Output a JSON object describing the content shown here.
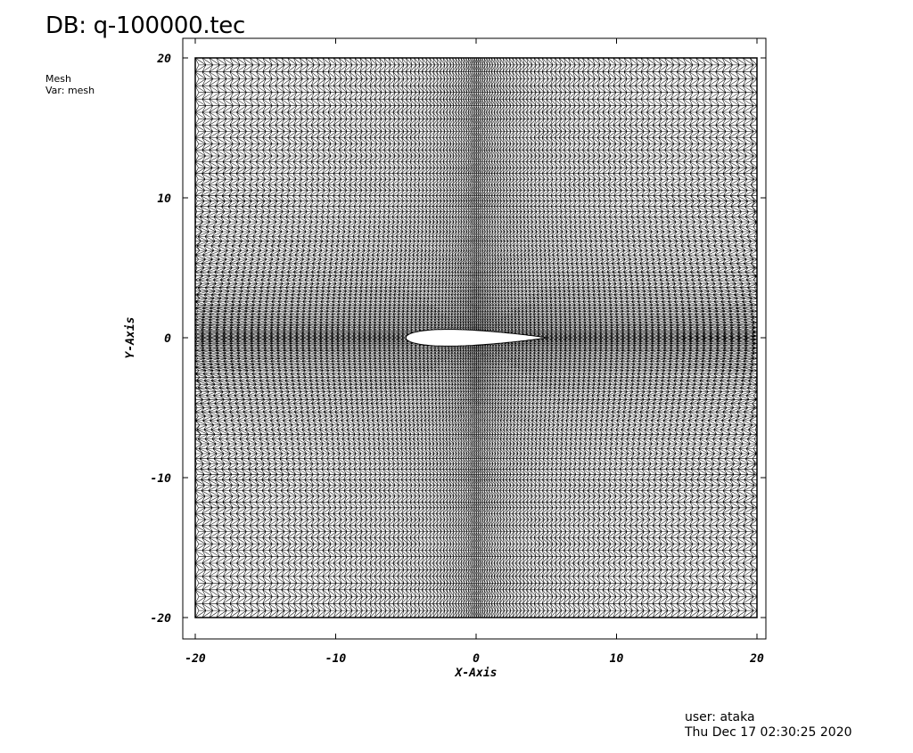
{
  "header": {
    "title": "DB: q-100000.tec"
  },
  "legend": {
    "plot_type": "Mesh",
    "variable": "Var: mesh"
  },
  "footer": {
    "user": "user: ataka",
    "timestamp": "Thu Dec 17 02:30:25 2020"
  },
  "chart_data": {
    "type": "mesh",
    "xlabel": "X-Axis",
    "ylabel": "Y-Axis",
    "xlim": [
      -20,
      20
    ],
    "ylim": [
      -20,
      20
    ],
    "x_ticks": [
      -20,
      -10,
      0,
      10,
      20
    ],
    "y_ticks": [
      -20,
      -10,
      0,
      10,
      20
    ],
    "x_tick_labels": [
      "-20",
      "-10",
      "0",
      "10",
      "20"
    ],
    "y_tick_labels": [
      "-20",
      "-10",
      "0",
      "10",
      "20"
    ],
    "mesh_color": "#000000",
    "airfoil": {
      "leading_edge": [
        -5,
        0
      ],
      "trailing_edge": [
        5,
        0
      ],
      "thickness_ratio": 0.12
    }
  }
}
